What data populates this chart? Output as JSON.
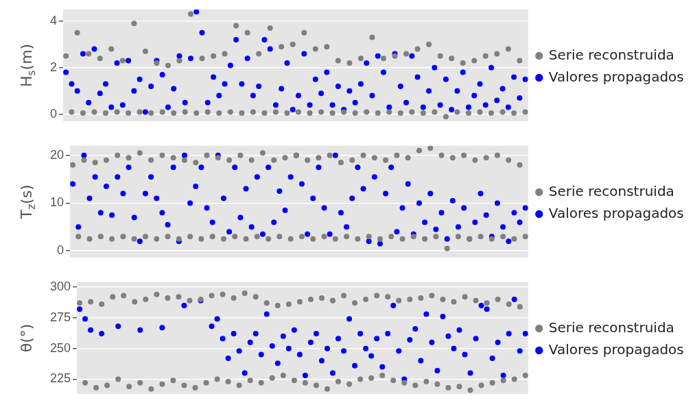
{
  "chart_data": [
    {
      "type": "scatter",
      "ylabel": "H$_{s}$(m)",
      "categories": [
        null,
        null,
        null,
        null,
        null,
        null,
        null,
        null,
        null,
        null,
        null,
        null,
        null,
        null,
        null,
        null,
        null,
        null,
        null,
        null,
        null,
        null,
        null,
        null,
        null,
        null,
        null,
        null,
        null,
        null,
        null,
        null,
        null,
        null,
        null,
        null,
        null,
        null,
        null,
        null,
        null,
        null,
        null,
        null,
        null,
        null,
        null,
        null,
        null,
        null,
        null,
        null,
        null,
        null,
        null,
        null,
        null,
        null,
        null,
        null,
        null,
        null,
        null,
        null,
        null,
        null,
        null,
        null,
        null,
        null,
        null,
        null,
        null,
        null,
        null,
        null,
        null,
        null,
        null,
        null,
        null,
        null
      ],
      "ylim": [
        -0.3,
        4.5
      ],
      "yticks": [
        0,
        2,
        4
      ],
      "tick_labels": "y",
      "grid": "y",
      "legend": "right",
      "marker": "circle",
      "series": [
        {
          "name": "Serie reconstruida",
          "color": "#808080",
          "values": [
            2.5,
            0.1,
            3.5,
            0.05,
            2.6,
            0.1,
            2.4,
            0.05,
            2.8,
            0.1,
            2.3,
            0.05,
            3.9,
            0.1,
            2.7,
            0.05,
            2.2,
            0.1,
            2.1,
            0.05,
            2.3,
            0.1,
            4.3,
            0.05,
            2.4,
            0.1,
            2.5,
            0.05,
            2.6,
            0.1,
            3.8,
            0.05,
            3.5,
            0.1,
            2.6,
            0.05,
            3.7,
            0.1,
            2.9,
            0.05,
            3.0,
            0.1,
            3.5,
            0.05,
            2.8,
            0.1,
            2.9,
            0.05,
            2.3,
            0.1,
            2.2,
            0.05,
            2.4,
            0.1,
            3.3,
            0.05,
            2.4,
            0.1,
            2.5,
            0.05,
            2.6,
            0.1,
            2.8,
            0.05,
            3.0,
            0.1,
            2.5,
            -0.1,
            2.4,
            0.1,
            2.2,
            0.05,
            2.3,
            0.1,
            2.5,
            0.05,
            2.6,
            0.1,
            2.8,
            0.05,
            2.3,
            0.1
          ]
        },
        {
          "name": "Valores propagados",
          "color": "#0000ff",
          "values": [
            1.8,
            1.3,
            1.0,
            2.6,
            0.5,
            2.8,
            0.9,
            1.3,
            0.3,
            2.2,
            0.4,
            2.3,
            1.0,
            1.5,
            0.1,
            1.2,
            2.3,
            1.7,
            0.3,
            1.1,
            2.5,
            0.5,
            2.4,
            4.4,
            3.5,
            0.5,
            1.6,
            0.8,
            1.3,
            2.1,
            3.2,
            1.3,
            2.4,
            0.8,
            1.2,
            3.2,
            2.8,
            0.4,
            1.1,
            2.2,
            0.2,
            0.8,
            2.6,
            0.4,
            1.5,
            0.9,
            1.8,
            0.4,
            1.2,
            0.2,
            1.0,
            0.5,
            1.3,
            2.2,
            0.8,
            2.5,
            1.8,
            0.3,
            2.6,
            1.2,
            0.5,
            2.5,
            1.6,
            0.3,
            1.0,
            2.0,
            0.4,
            1.5,
            0.2,
            1.0,
            1.8,
            0.3,
            0.8,
            1.3,
            0.4,
            2.0,
            0.6,
            1.1,
            0.3,
            1.6,
            0.7,
            1.5
          ]
        }
      ]
    },
    {
      "type": "scatter",
      "ylabel": "T$_{z}$(s)",
      "categories": [
        null,
        null,
        null,
        null,
        null,
        null,
        null,
        null,
        null,
        null,
        null,
        null,
        null,
        null,
        null,
        null,
        null,
        null,
        null,
        null,
        null,
        null,
        null,
        null,
        null,
        null,
        null,
        null,
        null,
        null,
        null,
        null,
        null,
        null,
        null,
        null,
        null,
        null,
        null,
        null,
        null,
        null,
        null,
        null,
        null,
        null,
        null,
        null,
        null,
        null,
        null,
        null,
        null,
        null,
        null,
        null,
        null,
        null,
        null,
        null,
        null,
        null,
        null,
        null,
        null,
        null,
        null,
        null,
        null,
        null,
        null,
        null,
        null,
        null,
        null,
        null,
        null,
        null,
        null,
        null,
        null,
        null
      ],
      "ylim": [
        -1.4,
        22
      ],
      "yticks": [
        0,
        10,
        20
      ],
      "tick_labels": "y",
      "grid": "y",
      "legend": "right",
      "marker": "circle",
      "series": [
        {
          "name": "Serie reconstruida",
          "color": "#808080",
          "values": [
            18,
            3,
            19,
            2.5,
            18.5,
            3,
            19,
            2.5,
            20,
            3,
            19.5,
            2.5,
            20.5,
            3,
            19,
            2.5,
            20,
            3,
            19.5,
            2.5,
            19,
            3,
            18.5,
            2.5,
            20,
            3,
            19.5,
            2.5,
            19,
            3,
            20,
            2.5,
            19,
            3,
            20.5,
            2.5,
            19,
            3,
            19.5,
            2.5,
            20,
            3,
            19,
            2.5,
            19.5,
            3,
            20,
            2.5,
            18.5,
            3,
            19,
            2.5,
            20,
            3,
            19.5,
            2.5,
            19,
            3,
            20,
            2.5,
            19.5,
            3,
            21,
            2.5,
            21.5,
            3,
            20,
            0.5,
            19.5,
            3,
            20,
            2.5,
            19,
            3,
            19.5,
            2.5,
            20,
            3,
            19,
            2.5,
            18,
            3
          ]
        },
        {
          "name": "Valores propagados",
          "color": "#0000ff",
          "values": [
            14,
            5,
            20,
            11,
            15.5,
            8,
            13.5,
            7.5,
            15.5,
            12,
            17.5,
            7,
            2,
            12,
            15.5,
            11,
            8,
            5.5,
            17.5,
            2,
            20,
            10,
            13.5,
            17.5,
            9,
            6,
            20,
            11,
            4,
            17.5,
            7,
            13,
            5,
            15.5,
            3.5,
            17.5,
            6,
            12.5,
            8.5,
            15.5,
            20,
            14,
            3.5,
            11,
            17.5,
            9,
            3.5,
            20,
            8,
            5,
            11,
            17.5,
            13,
            2,
            15.5,
            1.5,
            12,
            17.5,
            4,
            9,
            14,
            3.5,
            10,
            6,
            12,
            4.5,
            8,
            2.5,
            10.5,
            5,
            9,
            2.5,
            6,
            12,
            7.5,
            3,
            10,
            5,
            2,
            8,
            6,
            9
          ]
        }
      ]
    },
    {
      "type": "scatter",
      "ylabel": "θ(°)",
      "categories": [
        null,
        null,
        null,
        null,
        null,
        null,
        null,
        null,
        null,
        null,
        null,
        null,
        null,
        null,
        null,
        null,
        null,
        null,
        null,
        null,
        null,
        null,
        null,
        null,
        null,
        null,
        null,
        null,
        null,
        null,
        null,
        null,
        null,
        null,
        null,
        null,
        null,
        null,
        null,
        null,
        null,
        null,
        null,
        null,
        null,
        null,
        null,
        null,
        null,
        null,
        null,
        null,
        null,
        null,
        null,
        null,
        null,
        null,
        null,
        null,
        null,
        null,
        null,
        null,
        null,
        null,
        null,
        null,
        null,
        null,
        null,
        null,
        null,
        null,
        null,
        null,
        null,
        null,
        null,
        null,
        null,
        null
      ],
      "ylim": [
        213,
        304
      ],
      "yticks": [
        225,
        250,
        275,
        300
      ],
      "tick_labels": "y",
      "grid": "y",
      "legend": "right",
      "marker": "circle",
      "series": [
        {
          "name": "Serie reconstruida",
          "color": "#808080",
          "values": [
            287,
            222,
            288,
            218,
            286,
            220,
            292,
            225,
            293,
            219,
            288,
            222,
            290,
            217,
            294,
            221,
            291,
            224,
            292,
            220,
            289,
            218,
            290,
            222,
            293,
            225,
            294,
            223,
            291,
            220,
            295,
            224,
            292,
            222,
            287,
            226,
            285,
            228,
            286,
            224,
            288,
            222,
            290,
            220,
            291,
            217,
            289,
            223,
            293,
            221,
            287,
            225,
            290,
            226,
            293,
            228,
            292,
            224,
            289,
            222,
            290,
            220,
            291,
            223,
            293,
            221,
            290,
            218,
            288,
            219,
            292,
            216,
            289,
            220,
            287,
            222,
            290,
            224,
            286,
            225,
            284,
            228
          ]
        },
        {
          "name": "Valores propagados",
          "color": "#0000ff",
          "values": [
            282,
            274,
            265,
            null,
            262,
            null,
            null,
            268,
            null,
            null,
            null,
            265,
            null,
            null,
            null,
            267,
            null,
            null,
            null,
            285,
            null,
            null,
            289,
            null,
            268,
            274,
            258,
            242,
            262,
            248,
            230,
            255,
            262,
            245,
            278,
            252,
            238,
            260,
            250,
            265,
            245,
            228,
            255,
            262,
            240,
            250,
            230,
            258,
            248,
            274,
            236,
            262,
            250,
            244,
            258,
            235,
            262,
            285,
            248,
            225,
            257,
            266,
            240,
            278,
            255,
            232,
            276,
            260,
            250,
            265,
            245,
            230,
            258,
            285,
            282,
            242,
            255,
            228,
            262,
            290,
            248,
            262
          ]
        }
      ]
    }
  ]
}
